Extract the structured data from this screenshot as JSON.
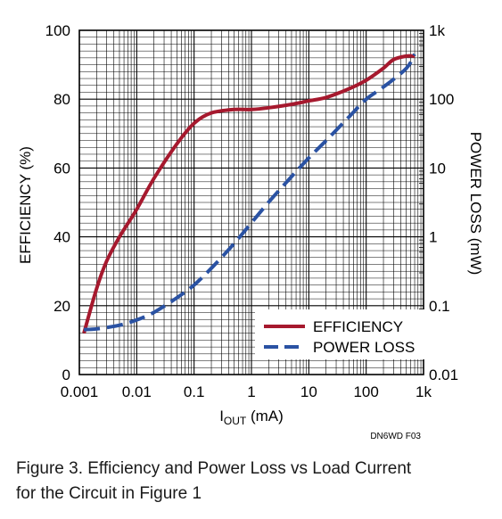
{
  "chart_data": {
    "type": "line",
    "title": "",
    "xlabel": {
      "main": "I",
      "sub": "OUT",
      "unit": " (mA)"
    },
    "ylabel_left": "EFFICIENCY (%)",
    "ylabel_right": "POWER LOSS (mW)",
    "x_scale": "log",
    "xlim": [
      0.001,
      1000
    ],
    "ylim_left": [
      0,
      100
    ],
    "y_scale_right": "log",
    "ylim_right": [
      0.01,
      1000
    ],
    "x_ticks": [
      "0.001",
      "0.01",
      "0.1",
      "1",
      "10",
      "100",
      "1k"
    ],
    "y_ticks_left": [
      "0",
      "20",
      "40",
      "60",
      "80",
      "100"
    ],
    "y_ticks_right": [
      "0.01",
      "0.1",
      "1",
      "10",
      "100",
      "1k"
    ],
    "grid": true,
    "legend_position": "bottom-right",
    "series": [
      {
        "name": "EFFICIENCY",
        "axis": "left",
        "color": "#a6192e",
        "style": "solid",
        "x": [
          0.0012,
          0.002,
          0.003,
          0.005,
          0.01,
          0.02,
          0.05,
          0.1,
          0.2,
          0.5,
          1,
          2,
          5,
          10,
          20,
          50,
          100,
          200,
          300,
          500,
          700
        ],
        "y": [
          12,
          25,
          33,
          40,
          48,
          57,
          67,
          73,
          76,
          77,
          77,
          77.5,
          78.5,
          79.5,
          80.5,
          83,
          85.5,
          89,
          91.5,
          92.5,
          92.5
        ]
      },
      {
        "name": "POWER LOSS",
        "axis": "right",
        "color": "#2a52a3",
        "style": "dashed",
        "x": [
          0.0012,
          0.002,
          0.005,
          0.01,
          0.02,
          0.05,
          0.1,
          0.2,
          0.5,
          1,
          2,
          5,
          10,
          20,
          50,
          100,
          200,
          500,
          700
        ],
        "y": [
          0.045,
          0.046,
          0.052,
          0.062,
          0.08,
          0.13,
          0.2,
          0.35,
          0.8,
          1.6,
          3.2,
          7.5,
          14,
          25,
          55,
          100,
          150,
          280,
          450
        ]
      }
    ],
    "annotation": "DN6WD F03"
  },
  "caption": {
    "line1": "Figure 3. Efficiency and Power Loss vs Load Current",
    "line2": "for the Circuit in Figure 1"
  }
}
